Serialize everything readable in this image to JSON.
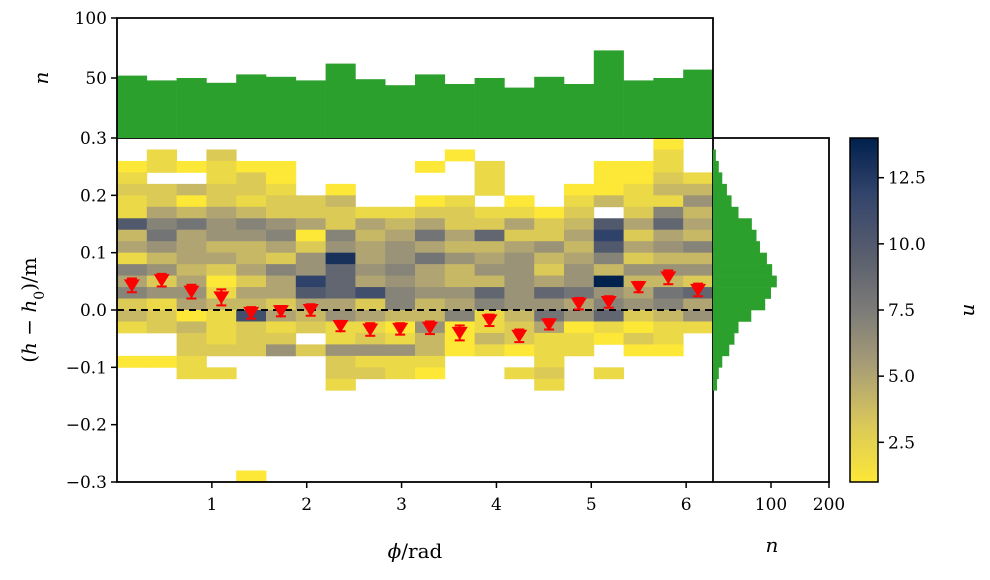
{
  "chart_data": {
    "type": "heatmap",
    "main": {
      "x_var": "ϕ",
      "x_unit": "rad",
      "y_var": "h",
      "y_var_sub_base": "h",
      "y_var_sub": "0",
      "y_unit": "m",
      "xlim": [
        0,
        6.2832
      ],
      "ylim": [
        -0.3,
        0.3
      ],
      "xticks": [
        1,
        2,
        3,
        4,
        5,
        6
      ],
      "yticks": [
        -0.3,
        -0.2,
        -0.1,
        0.0,
        0.1,
        0.2,
        0.3
      ],
      "ytick_labels": [
        "−0.3",
        "−0.2",
        "−0.1",
        "0.0",
        "0.1",
        "0.2",
        "0.3"
      ],
      "xtick_labels": [
        "1",
        "2",
        "3",
        "4",
        "5",
        "6"
      ],
      "x_bins": 20,
      "y_bins": 30,
      "y_bin_top": 0.3,
      "y_bin_width": 0.02,
      "reference_line": {
        "y": 0.0,
        "style": "dashed",
        "color": "#000000"
      },
      "counts": [
        [
          0,
          0,
          0,
          0,
          0,
          0,
          0,
          0,
          0,
          0,
          0,
          0,
          0,
          0,
          0,
          0,
          0,
          0,
          1,
          0
        ],
        [
          0,
          2,
          0,
          3,
          0,
          0,
          0,
          0,
          0,
          0,
          0,
          1,
          0,
          0,
          0,
          0,
          0,
          0,
          2,
          0
        ],
        [
          1,
          2,
          1,
          2,
          1,
          1,
          0,
          0,
          0,
          0,
          1,
          0,
          2,
          0,
          0,
          0,
          1,
          1,
          2,
          0
        ],
        [
          2,
          0,
          0,
          2,
          3,
          1,
          0,
          0,
          0,
          0,
          0,
          0,
          2,
          0,
          0,
          0,
          1,
          1,
          3,
          2
        ],
        [
          3,
          3,
          4,
          3,
          3,
          2,
          0,
          1,
          0,
          0,
          0,
          0,
          2,
          0,
          0,
          1,
          1,
          2,
          4,
          4
        ],
        [
          2,
          3,
          1,
          3,
          2,
          3,
          3,
          4,
          0,
          0,
          1,
          2,
          0,
          1,
          0,
          2,
          4,
          2,
          2,
          6
        ],
        [
          2,
          5,
          4,
          5,
          4,
          3,
          3,
          3,
          2,
          2,
          3,
          3,
          2,
          2,
          1,
          3,
          0,
          3,
          7,
          4
        ],
        [
          10,
          7,
          8,
          6,
          7,
          6,
          5,
          3,
          5,
          4,
          5,
          3,
          3,
          5,
          3,
          4,
          10,
          5,
          9,
          5
        ],
        [
          4,
          8,
          5,
          6,
          6,
          7,
          1,
          7,
          4,
          5,
          8,
          5,
          9,
          3,
          3,
          5,
          12,
          3,
          5,
          4
        ],
        [
          5,
          6,
          5,
          4,
          4,
          5,
          3,
          6,
          5,
          6,
          5,
          4,
          4,
          5,
          6,
          4,
          10,
          5,
          6,
          7
        ],
        [
          2,
          4,
          5,
          5,
          4,
          3,
          6,
          13,
          5,
          6,
          8,
          6,
          5,
          6,
          4,
          5,
          7,
          3,
          4,
          4
        ],
        [
          7,
          6,
          4,
          3,
          5,
          7,
          6,
          9,
          6,
          7,
          5,
          4,
          6,
          6,
          3,
          6,
          4,
          6,
          6,
          6
        ],
        [
          5,
          3,
          5,
          1,
          3,
          5,
          12,
          9,
          5,
          6,
          5,
          4,
          4,
          6,
          5,
          6,
          14,
          4,
          4,
          3
        ],
        [
          7,
          6,
          6,
          2,
          5,
          5,
          10,
          9,
          11,
          7,
          6,
          6,
          9,
          6,
          9,
          8,
          6,
          5,
          8,
          9
        ],
        [
          3,
          2,
          5,
          4,
          4,
          3,
          5,
          5,
          3,
          7,
          4,
          5,
          7,
          6,
          6,
          5,
          7,
          6,
          7,
          5
        ],
        [
          4,
          3,
          1,
          2,
          11,
          5,
          4,
          6,
          5,
          4,
          4,
          7,
          2,
          4,
          8,
          6,
          9,
          3,
          4,
          6
        ],
        [
          2,
          3,
          4,
          2,
          3,
          2,
          3,
          2,
          2,
          1,
          6,
          1,
          2,
          3,
          5,
          1,
          2,
          1,
          2,
          2
        ],
        [
          0,
          0,
          3,
          2,
          3,
          3,
          0,
          2,
          3,
          2,
          4,
          1,
          4,
          3,
          2,
          2,
          1,
          3,
          2,
          0
        ],
        [
          0,
          0,
          3,
          3,
          3,
          6,
          3,
          6,
          6,
          6,
          4,
          1,
          2,
          1,
          2,
          2,
          0,
          1,
          1,
          0
        ],
        [
          1,
          1,
          2,
          0,
          0,
          0,
          0,
          3,
          2,
          2,
          2,
          0,
          0,
          0,
          2,
          0,
          0,
          0,
          0,
          0
        ],
        [
          0,
          0,
          2,
          2,
          0,
          0,
          0,
          3,
          3,
          2,
          1,
          0,
          0,
          2,
          3,
          0,
          2,
          0,
          0,
          0
        ],
        [
          0,
          0,
          0,
          0,
          0,
          0,
          0,
          2,
          0,
          0,
          0,
          0,
          0,
          0,
          2,
          0,
          0,
          0,
          0,
          0
        ],
        [
          0,
          0,
          0,
          0,
          0,
          0,
          0,
          0,
          0,
          0,
          0,
          0,
          0,
          0,
          0,
          0,
          0,
          0,
          0,
          0
        ],
        [
          0,
          0,
          0,
          0,
          0,
          0,
          0,
          0,
          0,
          0,
          0,
          0,
          0,
          0,
          0,
          0,
          0,
          0,
          0,
          0
        ],
        [
          0,
          0,
          0,
          0,
          0,
          0,
          0,
          0,
          0,
          0,
          0,
          0,
          0,
          0,
          0,
          0,
          0,
          0,
          0,
          0
        ],
        [
          0,
          0,
          0,
          0,
          0,
          0,
          0,
          0,
          0,
          0,
          0,
          0,
          0,
          0,
          0,
          0,
          0,
          0,
          0,
          0
        ],
        [
          0,
          0,
          0,
          0,
          0,
          0,
          0,
          0,
          0,
          0,
          0,
          0,
          0,
          0,
          0,
          0,
          0,
          0,
          0,
          0
        ],
        [
          0,
          0,
          0,
          0,
          0,
          0,
          0,
          0,
          0,
          0,
          0,
          0,
          0,
          0,
          0,
          0,
          0,
          0,
          0,
          0
        ],
        [
          0,
          0,
          0,
          0,
          0,
          0,
          0,
          0,
          0,
          0,
          0,
          0,
          0,
          0,
          0,
          0,
          0,
          0,
          0,
          0
        ],
        [
          0,
          0,
          0,
          0,
          1,
          0,
          0,
          0,
          0,
          0,
          0,
          0,
          0,
          0,
          0,
          0,
          0,
          0,
          0,
          0
        ]
      ],
      "markers": {
        "style": "red-downward-triangle",
        "color": "#ff0000",
        "x": [
          0.157,
          0.471,
          0.785,
          1.1,
          1.414,
          1.728,
          2.042,
          2.356,
          2.67,
          2.985,
          3.299,
          3.613,
          3.927,
          4.241,
          4.555,
          4.869,
          5.184,
          5.498,
          5.812,
          6.126
        ],
        "y": [
          0.043,
          0.052,
          0.032,
          0.022,
          -0.005,
          -0.002,
          0.0,
          -0.028,
          -0.034,
          -0.033,
          -0.031,
          -0.04,
          -0.018,
          -0.045,
          -0.025,
          0.011,
          0.014,
          0.04,
          0.057,
          0.035
        ],
        "err": [
          0.012,
          0.011,
          0.012,
          0.014,
          0.01,
          0.009,
          0.01,
          0.009,
          0.011,
          0.01,
          0.011,
          0.013,
          0.01,
          0.011,
          0.009,
          0.01,
          0.01,
          0.009,
          0.012,
          0.011
        ]
      }
    },
    "top_hist": {
      "type": "bar",
      "ylabel": "n",
      "ylim": [
        0,
        100
      ],
      "yticks": [
        50,
        100
      ],
      "ytick_labels": [
        "50",
        "100"
      ],
      "values": [
        52,
        48,
        50,
        46,
        53,
        51,
        48,
        62,
        49,
        44,
        53,
        45,
        50,
        42,
        51,
        45,
        73,
        48,
        50,
        57
      ],
      "color": "#2ca02c"
    },
    "right_hist": {
      "type": "bar",
      "xlabel": "n",
      "xlim": [
        0,
        200
      ],
      "xticks": [
        100,
        200
      ],
      "xtick_labels": [
        "100",
        "200"
      ],
      "values": [
        0,
        5,
        10,
        16,
        24,
        32,
        44,
        67,
        75,
        81,
        93,
        102,
        110,
        100,
        90,
        66,
        44,
        37,
        28,
        16,
        10,
        7,
        0,
        0,
        0,
        0,
        0,
        0,
        0,
        0
      ],
      "color": "#2ca02c"
    },
    "colorbar": {
      "label": "n",
      "range": [
        1,
        14
      ],
      "ticks": [
        2.5,
        5.0,
        7.5,
        10.0,
        12.5
      ],
      "tick_labels": [
        "2.5",
        "5.0",
        "7.5",
        "10.0",
        "12.5"
      ],
      "colormap": "cividis_r",
      "color_stops": [
        "#fde737",
        "#d9c85a",
        "#a99e76",
        "#7c7b78",
        "#575d6d",
        "#33456c",
        "#00204d"
      ]
    }
  }
}
